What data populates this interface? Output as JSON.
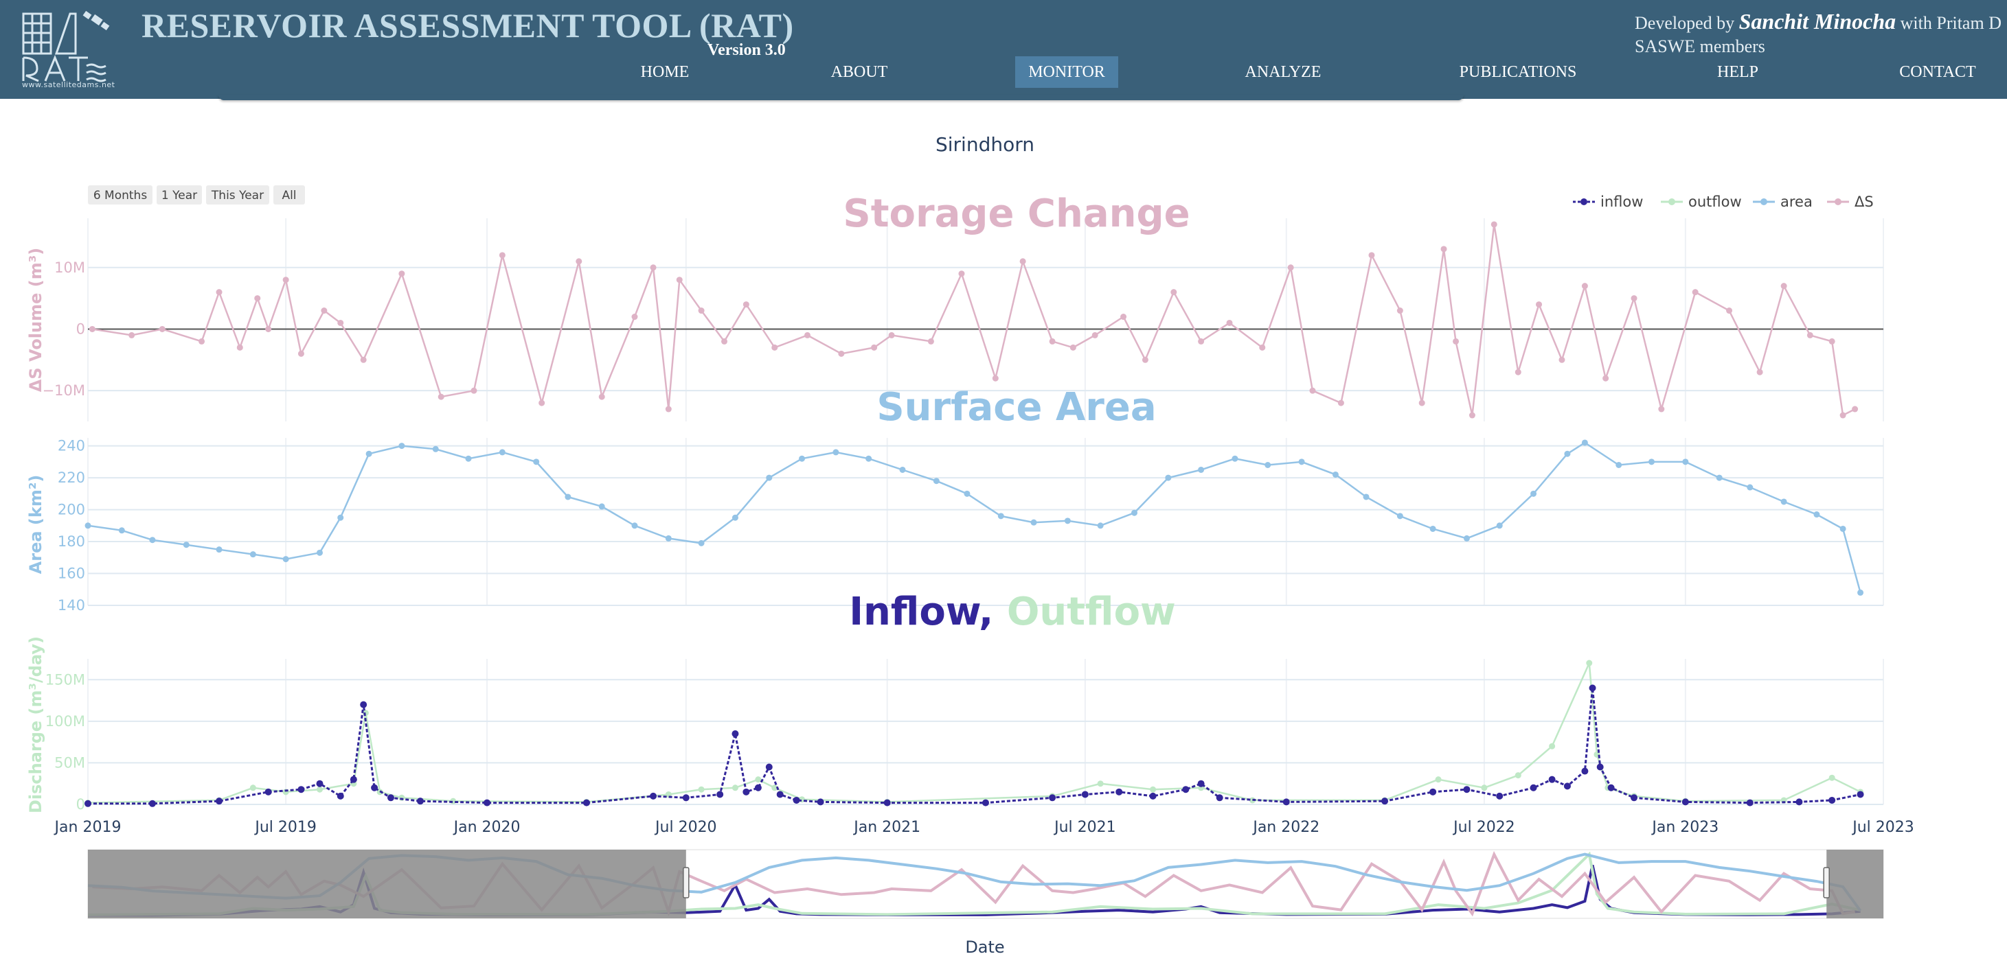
{
  "header": {
    "title": "RESERVOIR ASSESSMENT TOOL (RAT)",
    "version": "Version 3.0",
    "logo_text": "www.satellitedams.net",
    "credit_prefix": "Developed by ",
    "credit_name": "Sanchit Minocha",
    "credit_suffix": " with Pritam D",
    "credit_line2": "SASWE members"
  },
  "nav": {
    "items": [
      "HOME",
      "ABOUT",
      "MONITOR",
      "ANALYZE",
      "PUBLICATIONS",
      "HELP",
      "CONTACT"
    ],
    "active": "MONITOR"
  },
  "colors": {
    "header_bg": "#3a6079",
    "inflow": "#33279a",
    "outflow": "#bfe8c6",
    "area": "#94c3e6",
    "ds": "#deb3c6",
    "active_nav": "#4d7fa4"
  },
  "chart_data": {
    "type": "line",
    "title": "Sirindhorn",
    "xlabel": "Date",
    "range_buttons": [
      "6 Months",
      "1 Year",
      "This Year",
      "All"
    ],
    "x_ticks": [
      "Jan 2019",
      "Jul 2019",
      "Jan 2020",
      "Jul 2020",
      "Jan 2021",
      "Jul 2021",
      "Jan 2022",
      "Jul 2022",
      "Jan 2023",
      "Jul 2023"
    ],
    "x_range": [
      "2019-01-01",
      "2023-07-01"
    ],
    "range_slider_window": [
      "2020-07-01",
      "2023-05-10"
    ],
    "legend": {
      "placement": "top-right",
      "entries": [
        "inflow",
        "outflow",
        "area",
        "ΔS"
      ]
    },
    "panels": [
      {
        "title": "Storage Change",
        "ylabel": "ΔS Volume (m³)",
        "ylim": [
          -15000000,
          18000000
        ],
        "y_ticks": [
          10000000,
          0,
          -10000000
        ],
        "y_tick_labels": [
          "10M",
          "0",
          "−10M"
        ],
        "series": [
          {
            "name": "ΔS",
            "x": [
              "2019-01-05",
              "2019-02-10",
              "2019-03-10",
              "2019-04-15",
              "2019-05-01",
              "2019-05-20",
              "2019-06-05",
              "2019-06-15",
              "2019-07-01",
              "2019-07-15",
              "2019-08-05",
              "2019-08-20",
              "2019-09-10",
              "2019-10-15",
              "2019-11-20",
              "2019-12-20",
              "2020-01-15",
              "2020-02-20",
              "2020-03-25",
              "2020-04-15",
              "2020-05-15",
              "2020-06-01",
              "2020-06-15",
              "2020-06-25",
              "2020-07-15",
              "2020-08-05",
              "2020-08-25",
              "2020-09-20",
              "2020-10-20",
              "2020-11-20",
              "2020-12-20",
              "2021-01-05",
              "2021-02-10",
              "2021-03-10",
              "2021-04-10",
              "2021-05-05",
              "2021-06-01",
              "2021-06-20",
              "2021-07-10",
              "2021-08-05",
              "2021-08-25",
              "2021-09-20",
              "2021-10-15",
              "2021-11-10",
              "2021-12-10",
              "2022-01-05",
              "2022-01-25",
              "2022-02-20",
              "2022-03-20",
              "2022-04-15",
              "2022-05-05",
              "2022-05-25",
              "2022-06-05",
              "2022-06-20",
              "2022-07-10",
              "2022-08-01",
              "2022-08-20",
              "2022-09-10",
              "2022-10-01",
              "2022-10-20",
              "2022-11-15",
              "2022-12-10",
              "2023-01-10",
              "2023-02-10",
              "2023-03-10",
              "2023-04-01",
              "2023-04-25",
              "2023-05-15",
              "2023-05-25",
              "2023-06-05"
            ],
            "y": [
              0,
              -1000000,
              0,
              -2000000,
              6000000,
              -3000000,
              5000000,
              0,
              8000000,
              -4000000,
              3000000,
              1000000,
              -5000000,
              9000000,
              -11000000,
              -10000000,
              12000000,
              -12000000,
              11000000,
              -11000000,
              2000000,
              10000000,
              -13000000,
              8000000,
              3000000,
              -2000000,
              4000000,
              -3000000,
              -1000000,
              -4000000,
              -3000000,
              -1000000,
              -2000000,
              9000000,
              -8000000,
              11000000,
              -2000000,
              -3000000,
              -1000000,
              2000000,
              -5000000,
              6000000,
              -2000000,
              1000000,
              -3000000,
              10000000,
              -10000000,
              -12000000,
              12000000,
              3000000,
              -12000000,
              13000000,
              -2000000,
              -14000000,
              17000000,
              -7000000,
              4000000,
              -5000000,
              7000000,
              -8000000,
              5000000,
              -13000000,
              6000000,
              3000000,
              -7000000,
              7000000,
              -1000000,
              -2000000,
              -14000000,
              -13000000
            ]
          }
        ]
      },
      {
        "title": "Surface Area",
        "ylabel": "Area (km²)",
        "ylim": [
          140,
          245
        ],
        "y_ticks": [
          240,
          220,
          200,
          180,
          160,
          140
        ],
        "series": [
          {
            "name": "area",
            "x": [
              "2019-01-01",
              "2019-02-01",
              "2019-03-01",
              "2019-04-01",
              "2019-05-01",
              "2019-06-01",
              "2019-07-01",
              "2019-08-01",
              "2019-08-20",
              "2019-09-15",
              "2019-10-15",
              "2019-11-15",
              "2019-12-15",
              "2020-01-15",
              "2020-02-15",
              "2020-03-15",
              "2020-04-15",
              "2020-05-15",
              "2020-06-15",
              "2020-07-15",
              "2020-08-15",
              "2020-09-15",
              "2020-10-15",
              "2020-11-15",
              "2020-12-15",
              "2021-01-15",
              "2021-02-15",
              "2021-03-15",
              "2021-04-15",
              "2021-05-15",
              "2021-06-15",
              "2021-07-15",
              "2021-08-15",
              "2021-09-15",
              "2021-10-15",
              "2021-11-15",
              "2021-12-15",
              "2022-01-15",
              "2022-02-15",
              "2022-03-15",
              "2022-04-15",
              "2022-05-15",
              "2022-06-15",
              "2022-07-15",
              "2022-08-15",
              "2022-09-15",
              "2022-10-01",
              "2022-11-01",
              "2022-12-01",
              "2023-01-01",
              "2023-02-01",
              "2023-03-01",
              "2023-04-01",
              "2023-05-01",
              "2023-05-25",
              "2023-06-10"
            ],
            "y": [
              190,
              187,
              181,
              178,
              175,
              172,
              169,
              173,
              195,
              235,
              240,
              238,
              232,
              236,
              230,
              208,
              202,
              190,
              182,
              179,
              195,
              220,
              232,
              236,
              232,
              225,
              218,
              210,
              196,
              192,
              193,
              190,
              198,
              220,
              225,
              232,
              228,
              230,
              222,
              208,
              196,
              188,
              182,
              190,
              210,
              235,
              242,
              228,
              230,
              230,
              220,
              214,
              205,
              197,
              188,
              148
            ]
          }
        ]
      },
      {
        "title": "Inflow, Outflow",
        "title_parts": [
          "Inflow,",
          "Outflow"
        ],
        "ylabel": "Discharge (m³/day)",
        "ylim": [
          0,
          175000000
        ],
        "y_ticks": [
          150000000,
          100000000,
          50000000,
          0
        ],
        "y_tick_labels": [
          "150M",
          "100M",
          "50M",
          "0"
        ],
        "series": [
          {
            "name": "inflow",
            "x": [
              "2019-01-01",
              "2019-03-01",
              "2019-05-01",
              "2019-06-15",
              "2019-07-15",
              "2019-08-01",
              "2019-08-20",
              "2019-09-01",
              "2019-09-10",
              "2019-09-20",
              "2019-10-05",
              "2019-11-01",
              "2020-01-01",
              "2020-04-01",
              "2020-06-01",
              "2020-07-01",
              "2020-08-01",
              "2020-08-15",
              "2020-08-25",
              "2020-09-05",
              "2020-09-15",
              "2020-09-25",
              "2020-10-10",
              "2020-11-01",
              "2021-01-01",
              "2021-04-01",
              "2021-06-01",
              "2021-07-01",
              "2021-08-01",
              "2021-09-01",
              "2021-10-01",
              "2021-10-15",
              "2021-11-01",
              "2022-01-01",
              "2022-04-01",
              "2022-05-15",
              "2022-06-15",
              "2022-07-15",
              "2022-08-15",
              "2022-09-01",
              "2022-09-15",
              "2022-10-01",
              "2022-10-08",
              "2022-10-15",
              "2022-10-25",
              "2022-11-15",
              "2023-01-01",
              "2023-03-01",
              "2023-04-15",
              "2023-05-15",
              "2023-06-10"
            ],
            "y": [
              1000000,
              1000000,
              4000000,
              15000000,
              18000000,
              25000000,
              10000000,
              30000000,
              120000000,
              20000000,
              8000000,
              4000000,
              2000000,
              2000000,
              10000000,
              8000000,
              12000000,
              85000000,
              15000000,
              20000000,
              45000000,
              12000000,
              5000000,
              3000000,
              2000000,
              2000000,
              8000000,
              12000000,
              15000000,
              10000000,
              18000000,
              25000000,
              8000000,
              3000000,
              4000000,
              15000000,
              18000000,
              10000000,
              20000000,
              30000000,
              22000000,
              40000000,
              140000000,
              45000000,
              20000000,
              8000000,
              3000000,
              2000000,
              3000000,
              5000000,
              12000000
            ]
          },
          {
            "name": "outflow",
            "x": [
              "2019-01-01",
              "2019-05-01",
              "2019-06-01",
              "2019-07-01",
              "2019-08-01",
              "2019-09-01",
              "2019-09-12",
              "2019-09-25",
              "2019-10-15",
              "2019-12-01",
              "2020-04-01",
              "2020-06-15",
              "2020-07-15",
              "2020-08-15",
              "2020-09-05",
              "2020-09-20",
              "2020-10-15",
              "2021-01-01",
              "2021-06-01",
              "2021-07-15",
              "2021-09-01",
              "2021-10-15",
              "2021-12-01",
              "2022-04-01",
              "2022-05-20",
              "2022-07-01",
              "2022-08-01",
              "2022-09-01",
              "2022-10-05",
              "2022-10-12",
              "2022-10-22",
              "2022-11-15",
              "2023-01-01",
              "2023-04-01",
              "2023-05-15",
              "2023-06-10"
            ],
            "y": [
              2000000,
              5000000,
              20000000,
              15000000,
              18000000,
              25000000,
              110000000,
              15000000,
              8000000,
              4000000,
              3000000,
              12000000,
              18000000,
              20000000,
              30000000,
              20000000,
              6000000,
              3000000,
              10000000,
              25000000,
              18000000,
              20000000,
              5000000,
              5000000,
              30000000,
              20000000,
              35000000,
              70000000,
              170000000,
              60000000,
              20000000,
              10000000,
              4000000,
              5000000,
              32000000,
              15000000
            ]
          }
        ]
      }
    ]
  }
}
